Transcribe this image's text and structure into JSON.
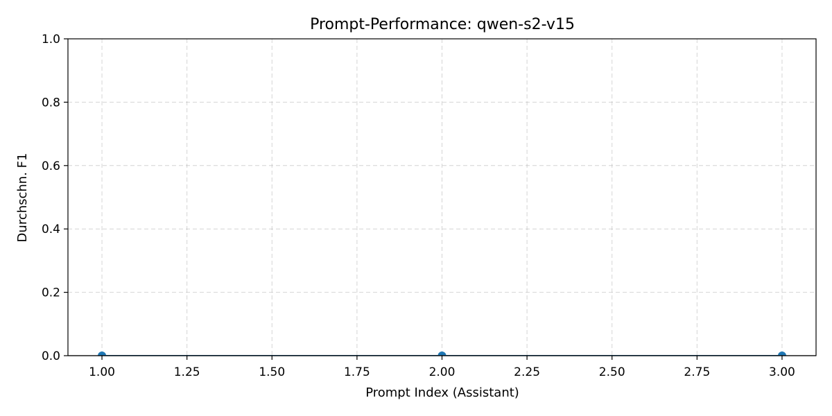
{
  "chart_data": {
    "type": "line",
    "title": "Prompt-Performance: qwen-s2-v15",
    "xlabel": "Prompt Index (Assistant)",
    "ylabel": "Durchschn. F1",
    "xlim": [
      0.9,
      3.1
    ],
    "ylim": [
      0.0,
      1.0
    ],
    "x_ticks": [
      1.0,
      1.25,
      1.5,
      1.75,
      2.0,
      2.25,
      2.5,
      2.75,
      3.0
    ],
    "x_tick_labels": [
      "1.00",
      "1.25",
      "1.50",
      "1.75",
      "2.00",
      "2.25",
      "2.50",
      "2.75",
      "3.00"
    ],
    "y_ticks": [
      0.0,
      0.2,
      0.4,
      0.6,
      0.8,
      1.0
    ],
    "y_tick_labels": [
      "0.0",
      "0.2",
      "0.4",
      "0.6",
      "0.8",
      "1.0"
    ],
    "grid": true,
    "legend": false,
    "series": [
      {
        "x": [
          1,
          2,
          3
        ],
        "y": [
          0.0,
          0.0,
          0.0
        ],
        "color": "#1f77b4",
        "marker": "circle"
      }
    ]
  }
}
